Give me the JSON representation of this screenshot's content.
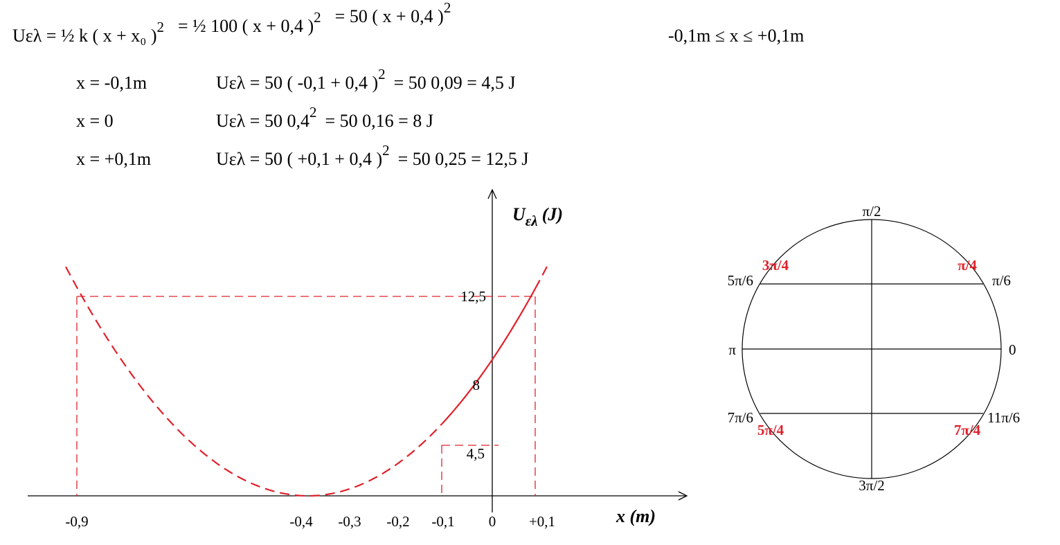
{
  "equation": {
    "parts": [
      {
        "text": "Uελ = ½ k ( x + x₀ )",
        "sup": "2"
      },
      {
        "text": "=  ½  100  ( x + 0,4 )",
        "sup": "2"
      },
      {
        "text": "=   50 ( x + 0,4 )",
        "sup": "2"
      }
    ],
    "range": "-0,1m ≤  x  ≤ +0,1m"
  },
  "rows": [
    {
      "x": "x = -0,1m",
      "expr": "Uελ  =  50  ( -0,1 + 0,4 )",
      "sup": "2",
      "result": "=  50  0,09  =  4,5 J"
    },
    {
      "x": "x = 0",
      "expr": "Uελ  =  50   0,4",
      "sup": "2",
      "result": "=  50  0,16  =   8  J"
    },
    {
      "x": "x = +0,1m",
      "expr": "Uελ  =  50  ( +0,1 + 0,4 )",
      "sup": "2",
      "result": "=  50  0,25  =  12,5 J"
    }
  ],
  "graph": {
    "y_label": "U",
    "y_label_sub": "ελ",
    "y_label_unit": "(J)",
    "x_label": "x (m)",
    "x_ticks": [
      "-0,9",
      "-0,4",
      "-0,3",
      "-0,2",
      "-0,1",
      "0",
      "+0,1"
    ],
    "y_ticks": [
      "12,5",
      "8",
      "4,5"
    ]
  },
  "circle": {
    "labels": [
      "π/2",
      "3π/4",
      "π/4",
      "5π/6",
      "π/6",
      "π",
      "0",
      "7π/6",
      "11π/6",
      "5π/4",
      "7π/4",
      "3π/2"
    ]
  }
}
